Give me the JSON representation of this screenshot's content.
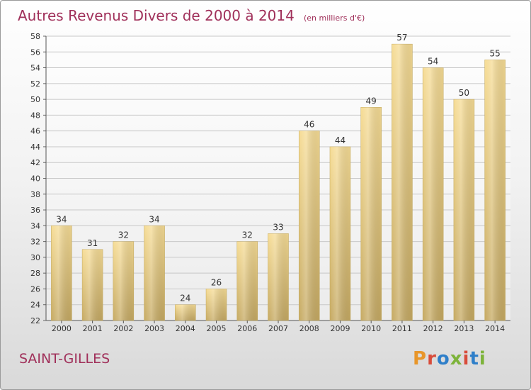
{
  "chart_data": {
    "type": "bar",
    "title": "Autres Revenus Divers de 2000 à 2014",
    "subtitle": "(en milliers d'€)",
    "categories": [
      "2000",
      "2001",
      "2002",
      "2003",
      "2004",
      "2005",
      "2006",
      "2007",
      "2008",
      "2009",
      "2010",
      "2011",
      "2012",
      "2013",
      "2014"
    ],
    "values": [
      34,
      31,
      32,
      34,
      24,
      26,
      32,
      33,
      46,
      44,
      49,
      57,
      54,
      50,
      55
    ],
    "ylim": [
      22,
      58
    ],
    "yticks": [
      22,
      24,
      26,
      28,
      30,
      32,
      34,
      36,
      38,
      40,
      42,
      44,
      46,
      48,
      50,
      52,
      54,
      56,
      58
    ],
    "grid": true,
    "bar_color": "#e8cf8a"
  },
  "commune": "SAINT-GILLES",
  "logo": {
    "text": "Proxiti",
    "colors": [
      "#e8962a",
      "#2f7fc9",
      "#7db33a",
      "#d84c3b"
    ]
  }
}
